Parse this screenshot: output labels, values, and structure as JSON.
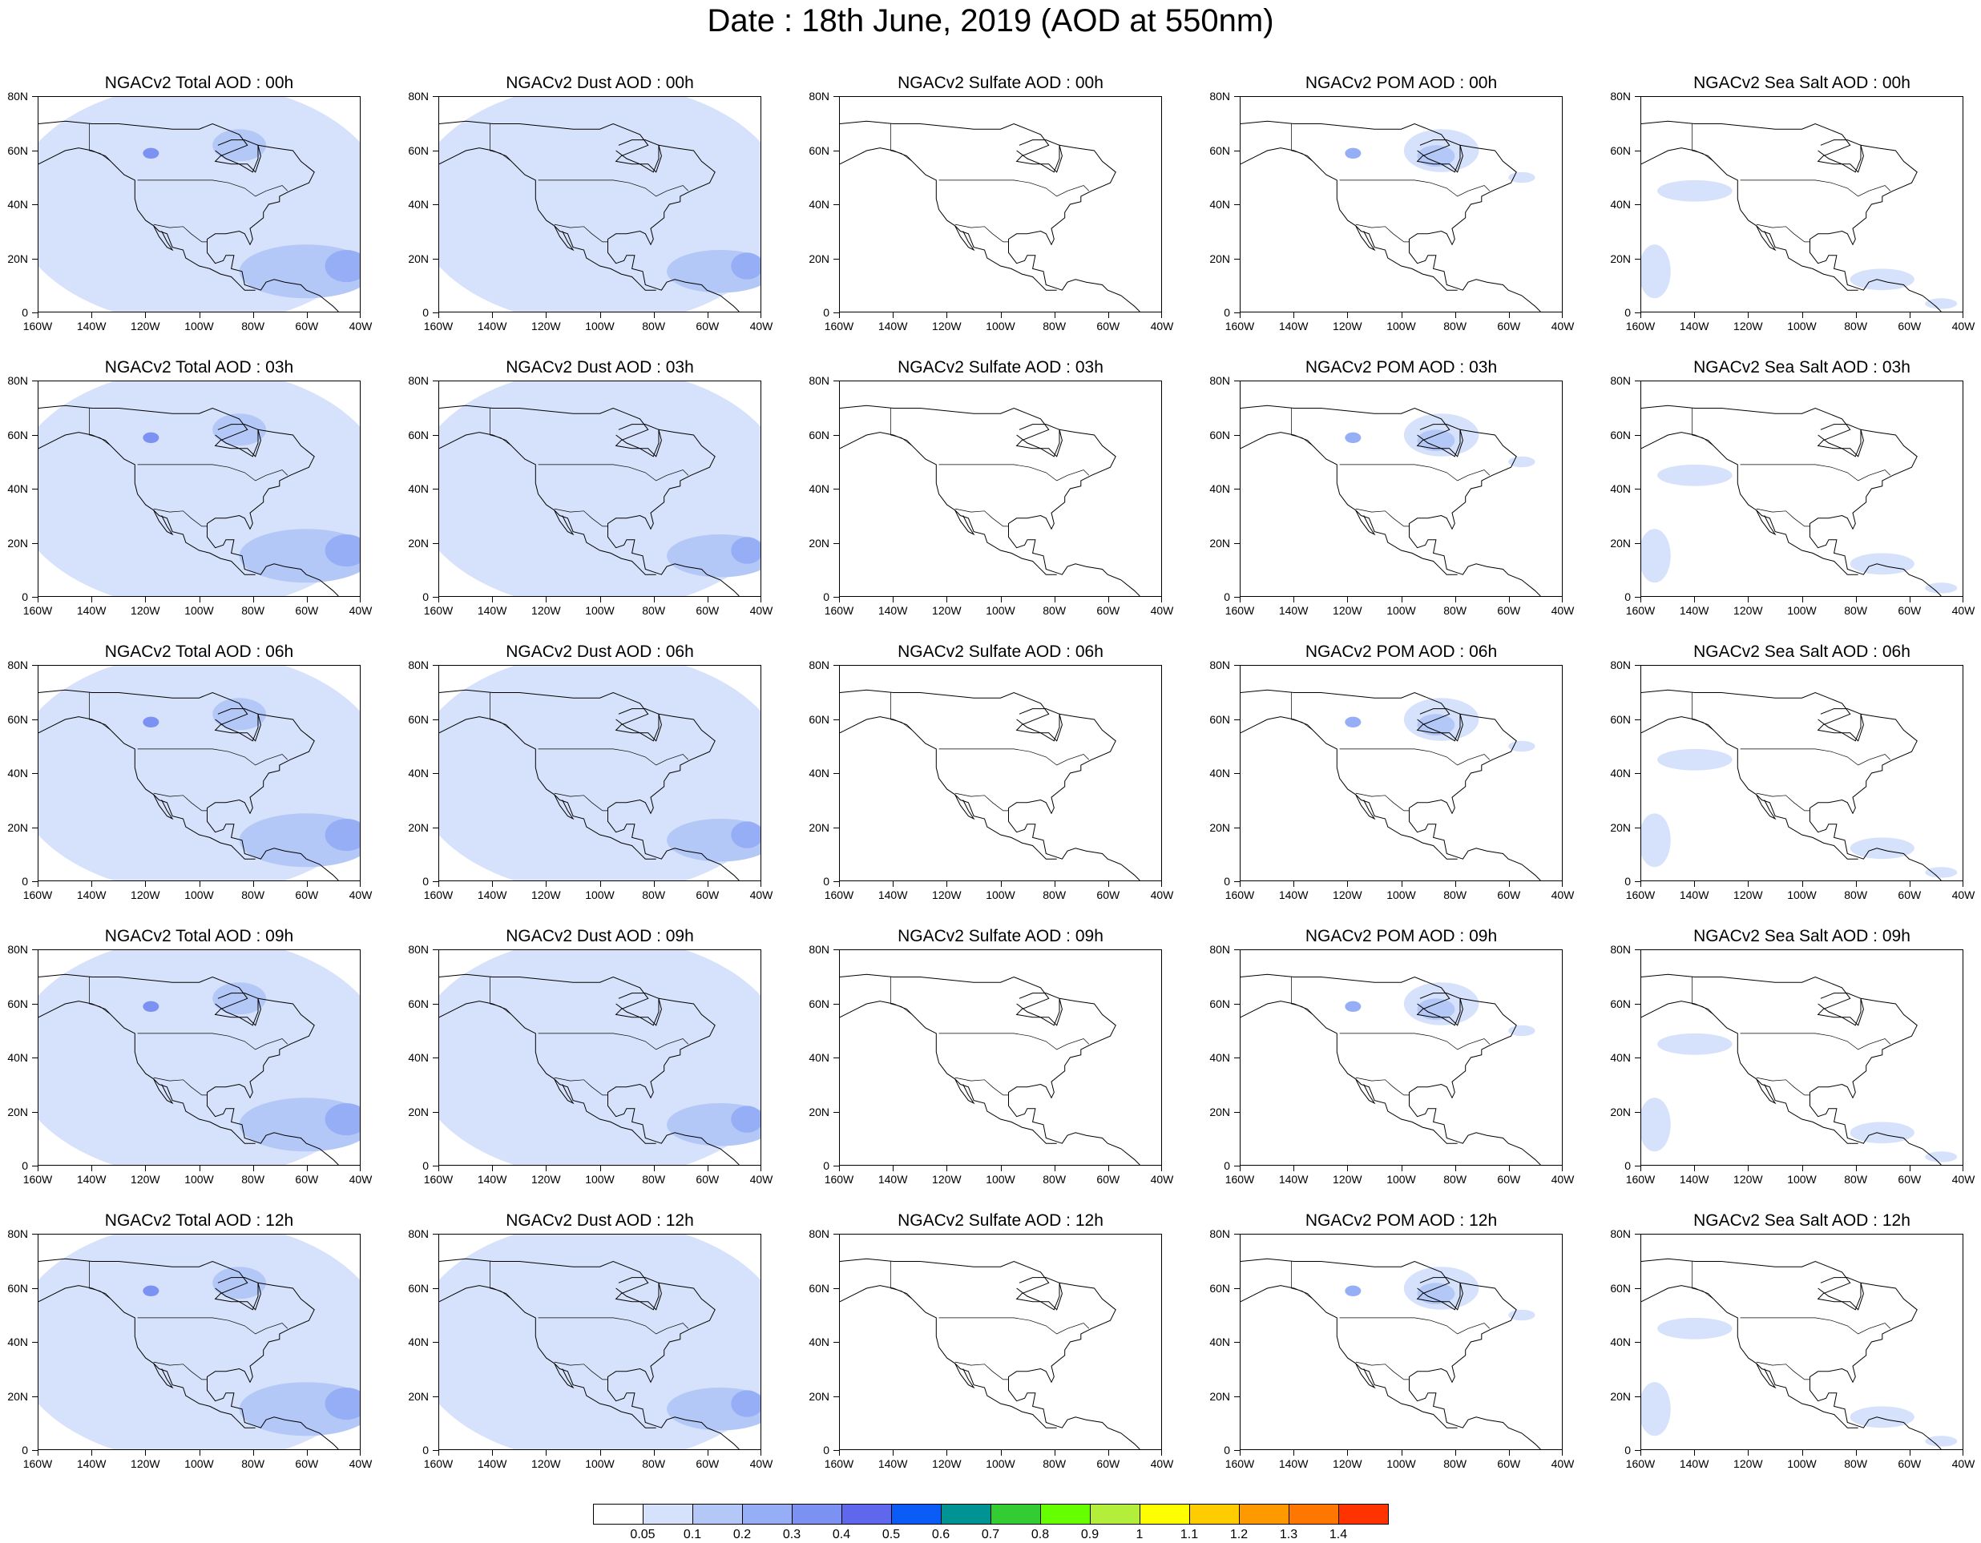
{
  "title": "Date : 18th June, 2019 (AOD at 550nm)",
  "axes": {
    "lat_labels": [
      "80N",
      "60N",
      "40N",
      "20N",
      "0"
    ],
    "lon_labels": [
      "160W",
      "140W",
      "120W",
      "100W",
      "80W",
      "60W",
      "40W"
    ]
  },
  "map_background": "land coastlines and political boundaries (US/Canada, Mexico)",
  "colorbar": {
    "colors": [
      "#ffffff",
      "#d6e2fb",
      "#b4c8f7",
      "#95aef5",
      "#7b92f2",
      "#5f68ec",
      "#0b5bf6",
      "#009393",
      "#33cc33",
      "#66ff00",
      "#b2ee3a",
      "#ffff00",
      "#ffcc00",
      "#ff9900",
      "#ff7700",
      "#ff3300"
    ],
    "labels": [
      "0.05",
      "0.1",
      "0.2",
      "0.3",
      "0.4",
      "0.5",
      "0.6",
      "0.7",
      "0.8",
      "0.9",
      "1",
      "1.1",
      "1.2",
      "1.3",
      "1.4"
    ]
  },
  "panels": [
    {
      "title": "NGACv2 Total AOD : 00h",
      "species": "total",
      "hour": "00h"
    },
    {
      "title": "NGACv2 Dust AOD : 00h",
      "species": "dust",
      "hour": "00h"
    },
    {
      "title": "NGACv2 Sulfate AOD : 00h",
      "species": "sulfate",
      "hour": "00h"
    },
    {
      "title": "NGACv2 POM AOD : 00h",
      "species": "pom",
      "hour": "00h"
    },
    {
      "title": "NGACv2 Sea Salt AOD : 00h",
      "species": "seasalt",
      "hour": "00h"
    },
    {
      "title": "NGACv2 Total AOD : 03h",
      "species": "total",
      "hour": "03h"
    },
    {
      "title": "NGACv2 Dust AOD : 03h",
      "species": "dust",
      "hour": "03h"
    },
    {
      "title": "NGACv2 Sulfate AOD : 03h",
      "species": "sulfate",
      "hour": "03h"
    },
    {
      "title": "NGACv2 POM AOD : 03h",
      "species": "pom",
      "hour": "03h"
    },
    {
      "title": "NGACv2 Sea Salt AOD : 03h",
      "species": "seasalt",
      "hour": "03h"
    },
    {
      "title": "NGACv2 Total AOD : 06h",
      "species": "total",
      "hour": "06h"
    },
    {
      "title": "NGACv2 Dust AOD : 06h",
      "species": "dust",
      "hour": "06h"
    },
    {
      "title": "NGACv2 Sulfate AOD : 06h",
      "species": "sulfate",
      "hour": "06h"
    },
    {
      "title": "NGACv2 POM AOD : 06h",
      "species": "pom",
      "hour": "06h"
    },
    {
      "title": "NGACv2 Sea Salt AOD : 06h",
      "species": "seasalt",
      "hour": "06h"
    },
    {
      "title": "NGACv2 Total AOD : 09h",
      "species": "total",
      "hour": "09h"
    },
    {
      "title": "NGACv2 Dust AOD : 09h",
      "species": "dust",
      "hour": "09h"
    },
    {
      "title": "NGACv2 Sulfate AOD : 09h",
      "species": "sulfate",
      "hour": "09h"
    },
    {
      "title": "NGACv2 POM AOD : 09h",
      "species": "pom",
      "hour": "09h"
    },
    {
      "title": "NGACv2 Sea Salt  AOD : 09h",
      "species": "seasalt",
      "hour": "09h"
    },
    {
      "title": "NGACv2 Total AOD  : 12h",
      "species": "total",
      "hour": "12h"
    },
    {
      "title": "NGACv2 Dust AOD : 12h",
      "species": "dust",
      "hour": "12h"
    },
    {
      "title": "NGACv2 Sulfate AOD : 12h",
      "species": "sulfate",
      "hour": "12h"
    },
    {
      "title": "NGACv2 POM  AOD : 12h",
      "species": "pom",
      "hour": "12h"
    },
    {
      "title": "NGACv2 Sea Salt  AOD : 12h",
      "species": "seasalt",
      "hour": "12h"
    }
  ]
}
